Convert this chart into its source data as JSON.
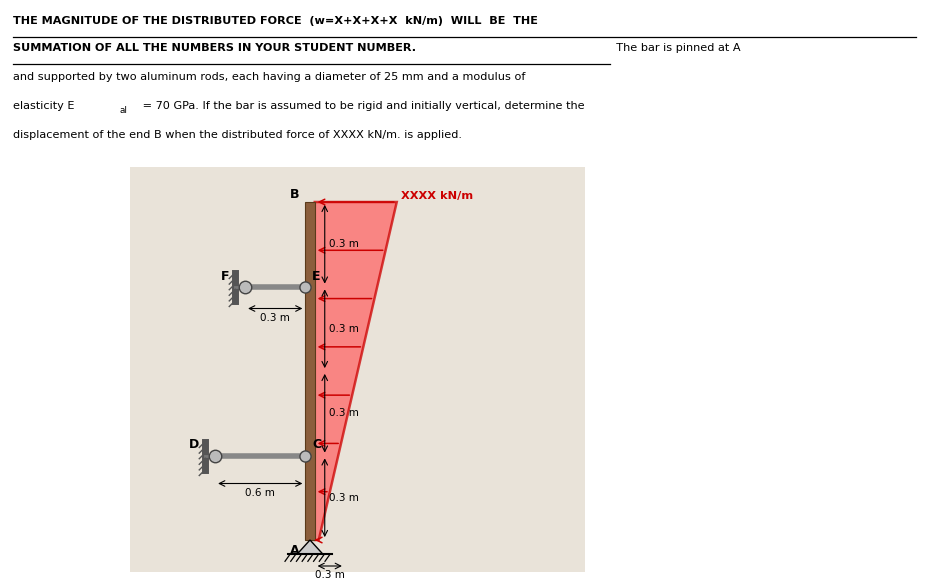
{
  "bg_color": "#ffffff",
  "bar_color": "#8B5E3C",
  "bar_edge_color": "#5a3a1a",
  "rod_color": "#888888",
  "pin_color": "#aaaaaa",
  "load_color": "#cc0000",
  "load_fill": "#ff6666",
  "diag_bg_color": "#c8bba0",
  "text_color": "#000000",
  "title1": "THE MAGNITUDE OF THE DISTRIBUTED FORCE  (w=X+X+X+X  kN/m)  WILL  BE  THE",
  "title2_bold": "SUMMATION OF ALL THE NUMBERS IN YOUR STUDENT NUMBER.",
  "title2_normal": "  The bar is pinned at A",
  "body1": "and supported by two aluminum rods, each having a diameter of 25 mm and a modulus of",
  "body2a": "elasticity E",
  "body2b": "al",
  "body2c": " = 70 GPa. If the bar is assumed to be rigid and initially vertical, determine the",
  "body3": "displacement of the end B when the distributed force of XXXX kN/m. is applied.",
  "label_B": "B",
  "label_E": "E",
  "label_F": "F",
  "label_C": "C",
  "label_D": "D",
  "label_A": "A",
  "label_load": "XXXX kN/m",
  "dim_03a": "0.3 m",
  "dim_03b": "0.3 m",
  "dim_03c": "0.3 m",
  "dim_03d": "0.3 m",
  "dim_06": "0.6 m",
  "dim_03e": "0.3 m",
  "dim_EF": "0.3 m"
}
